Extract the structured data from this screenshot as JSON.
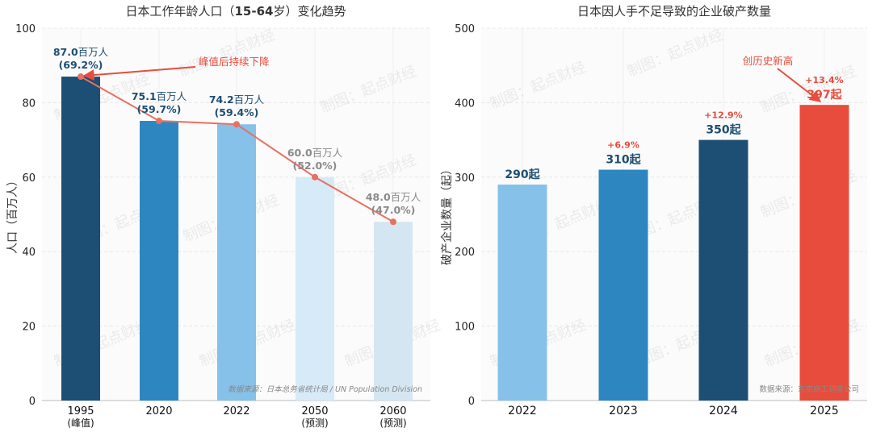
{
  "chart_data": [
    {
      "type": "bar",
      "title_parts": [
        "日本工作年龄人口（",
        "15-64",
        "岁）变化趋势"
      ],
      "xlabel": "",
      "ylabel": "人口（百万人）",
      "ylim": [
        0,
        100
      ],
      "yticks": [
        "0",
        "20",
        "40",
        "60",
        "80",
        "100"
      ],
      "categories": [
        "1995",
        "2020",
        "2022",
        "2050",
        "2060"
      ],
      "category_notes": [
        "(峰值)",
        "",
        "",
        "(预测)",
        "(预测)"
      ],
      "values": [
        87.0,
        75.1,
        74.2,
        60.0,
        48.0
      ],
      "value_labels": [
        "87.0",
        "75.1",
        "74.2",
        "60.0",
        "48.0"
      ],
      "value_unit": "百万人",
      "pct_labels": [
        "(69.2%)",
        "(59.7%)",
        "(59.4%)",
        "(52.0%)",
        "(47.0%)"
      ],
      "bar_colors": [
        "#1d4e73",
        "#2e86c1",
        "#85c1e9",
        "#d6eaf8",
        "#d4e6f1"
      ],
      "label_colors": [
        "#1d4e73",
        "#1d4e73",
        "#1d4e73",
        "#8a8a8a",
        "#8a8a8a"
      ],
      "line_color": "#e67163",
      "annotation": "峰值后持续下降",
      "annotation_color": "#e74c3c",
      "source": "数据来源：日本总务省统计局 / UN Population Division",
      "grid": true,
      "watermark": "制图：起点财经"
    },
    {
      "type": "bar",
      "title": "日本因人手不足导致的企业破产数量",
      "xlabel": "",
      "ylabel": "破产企业数量（起）",
      "ylim": [
        0,
        500
      ],
      "yticks": [
        "0",
        "100",
        "200",
        "300",
        "400",
        "500"
      ],
      "categories": [
        "2022",
        "2023",
        "2024",
        "2025"
      ],
      "values": [
        290,
        310,
        350,
        397
      ],
      "value_labels": [
        "290起",
        "310起",
        "350起",
        "397起"
      ],
      "growth_labels": [
        "",
        "+6.9%",
        "+12.9%",
        "+13.4%"
      ],
      "bar_colors": [
        "#85c1e9",
        "#2e86c1",
        "#1d4e73",
        "#e74c3c"
      ],
      "label_colors": [
        "#1d4e73",
        "#1d4e73",
        "#1d4e73",
        "#e74c3c"
      ],
      "growth_color": "#e74c3c",
      "annotation": "创历史新高",
      "annotation_color": "#e74c3c",
      "source": "数据来源：东京商工调查公司",
      "grid": true,
      "watermark": "制图：起点财经"
    }
  ]
}
